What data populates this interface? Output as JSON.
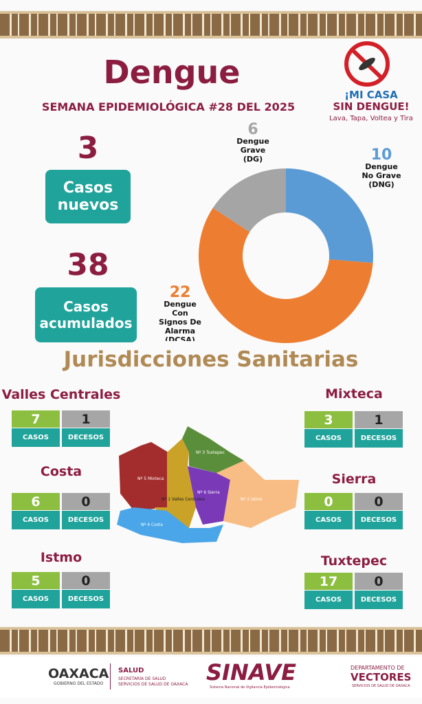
{
  "header": {
    "title": "Dengue",
    "subtitle": "SEMANA EPIDEMIOLÓGICA #28 DEL 2025"
  },
  "campaign": {
    "line1": "¡MI CASA",
    "line2": "SIN DENGUE!",
    "tagline": "Lava, Tapa, Voltea y Tira"
  },
  "summary": [
    {
      "value": 3,
      "label": "Casos nuevos"
    },
    {
      "value": 38,
      "label": "Casos acumulados"
    }
  ],
  "chart_data": {
    "type": "donut",
    "categories": [
      "Dengue No Grave (DNG)",
      "Dengue Con Signos De Alarma (DCSA)",
      "Dengue Grave (DG)"
    ],
    "values": [
      10,
      22,
      6
    ],
    "colors": [
      "#5b9bd5",
      "#ed7d31",
      "#a5a5a5"
    ]
  },
  "section_title": "Jurisdicciones Sanitarias",
  "labels": {
    "casos": "CASOS",
    "decesos": "DECESOS"
  },
  "jurisdictions": [
    {
      "name": "Valles Centrales",
      "casos": 7,
      "decesos": 1
    },
    {
      "name": "Costa",
      "casos": 6,
      "decesos": 0
    },
    {
      "name": "Istmo",
      "casos": 5,
      "decesos": 0
    },
    {
      "name": "Mixteca",
      "casos": 3,
      "decesos": 1
    },
    {
      "name": "Sierra",
      "casos": 0,
      "decesos": 0
    },
    {
      "name": "Tuxtepec",
      "casos": 17,
      "decesos": 0
    }
  ],
  "map": {
    "regions": [
      "Nº 5 Mixteca",
      "Nº 1 Valles Centrales",
      "Nº 3 Tuxtepec",
      "Nº 6 Sierra",
      "Nº 2 Istmo",
      "Nº 4 Costa"
    ]
  },
  "footer": {
    "state": "OAXACA",
    "state_sub": "GOBIERNO DEL ESTADO",
    "salud": "SALUD",
    "salud_sub1": "SECRETARÍA DE SALUD",
    "salud_sub2": "SERVICIOS DE SALUD DE OAXACA",
    "sinave": "SINAVE",
    "sinave_sub": "Sistema Nacional de Vigilancia Epidemiológica",
    "dept1": "DEPARTAMENTO DE",
    "dept2": "VECTORES",
    "dept_sub": "SERVICIOS DE SALUD DE OAXACA"
  }
}
